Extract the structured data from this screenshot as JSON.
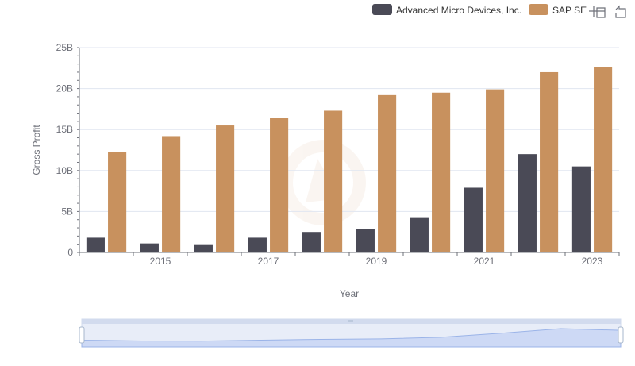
{
  "chart_data": {
    "type": "bar",
    "title": "",
    "xlabel": "Year",
    "ylabel": "Gross Profit",
    "x": [
      2014,
      2015,
      2016,
      2017,
      2018,
      2019,
      2020,
      2021,
      2022,
      2023
    ],
    "x_tick_labels": [
      "2015",
      "2017",
      "2019",
      "2021",
      "2023"
    ],
    "y_tick_labels": [
      "0",
      "5B",
      "10B",
      "15B",
      "20B",
      "25B"
    ],
    "ylim": [
      0,
      25000000000
    ],
    "grid": true,
    "legend_position": "top-right",
    "series": [
      {
        "name": "Advanced Micro Devices, Inc.",
        "color": "#4a4a56",
        "values": [
          1800000000,
          1100000000,
          1000000000,
          1800000000,
          2500000000,
          2900000000,
          4300000000,
          7900000000,
          12000000000,
          10500000000
        ]
      },
      {
        "name": "SAP SE",
        "color": "#c8915e",
        "values": [
          12300000000,
          14200000000,
          15500000000,
          16400000000,
          17300000000,
          19200000000,
          19500000000,
          19900000000,
          22000000000,
          22600000000
        ]
      }
    ]
  },
  "toolbar": {
    "zoom_icon": "zoom-icon",
    "restore_icon": "restore-icon"
  },
  "datazoom": {
    "handle_icon": "drag-handle-icon"
  }
}
